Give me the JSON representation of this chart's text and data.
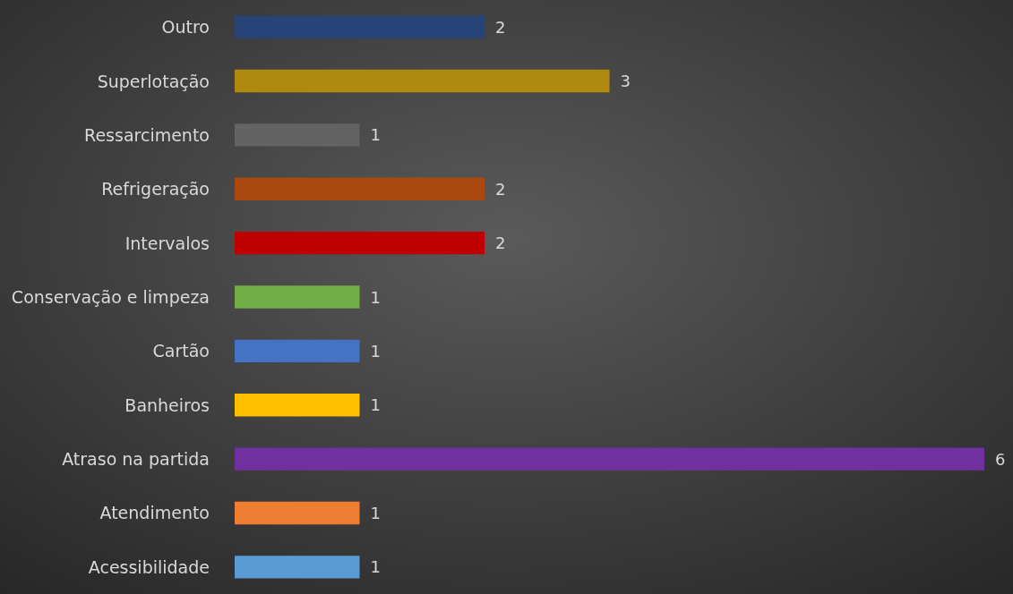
{
  "chart_data": {
    "type": "bar",
    "orientation": "horizontal",
    "data_labels": true,
    "categories": [
      "Outro",
      "Superlotação",
      "Ressarcimento",
      "Refrigeração",
      "Intervalos",
      "Conservação e limpeza",
      "Cartão",
      "Banheiros",
      "Atraso na partida",
      "Atendimento",
      "Acessibilidade"
    ],
    "values": [
      2,
      3,
      1,
      2,
      2,
      1,
      1,
      1,
      6,
      1,
      1
    ],
    "colors": [
      "#264478",
      "#b08a0e",
      "#636363",
      "#a9480f",
      "#c00000",
      "#70ad47",
      "#4472c4",
      "#ffc000",
      "#7030a0",
      "#ed7d31",
      "#5b9bd5"
    ]
  }
}
